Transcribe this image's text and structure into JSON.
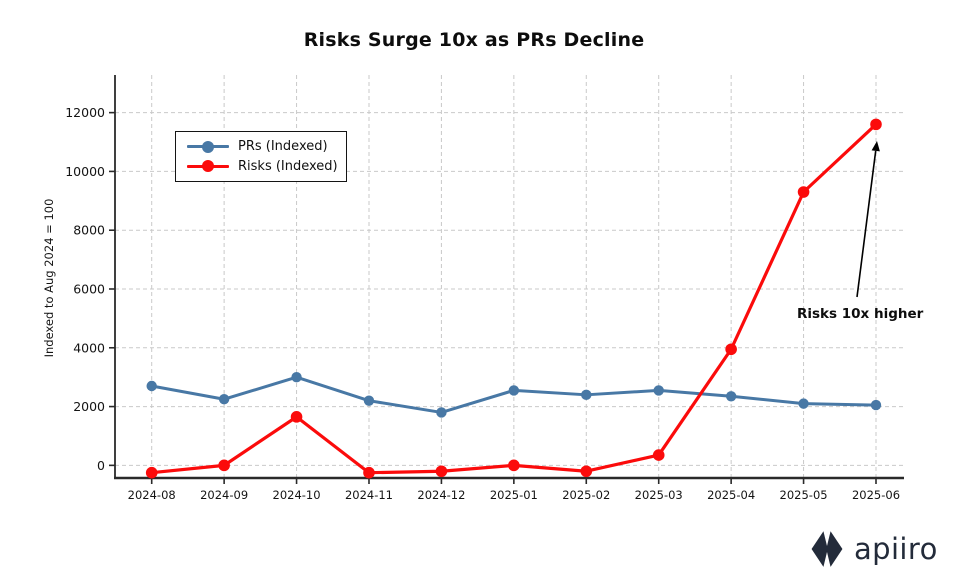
{
  "chart_data": {
    "type": "line",
    "title": "Risks Surge 10x as PRs Decline",
    "xlabel": "",
    "ylabel": "Indexed to Aug 2024 = 100",
    "categories": [
      "2024-08",
      "2024-09",
      "2024-10",
      "2024-11",
      "2024-12",
      "2025-01",
      "2025-02",
      "2025-03",
      "2025-04",
      "2025-05",
      "2025-06"
    ],
    "series": [
      {
        "name": "PRs (Indexed)",
        "color": "#4878A5",
        "values": [
          2700,
          2250,
          3000,
          2200,
          1800,
          2550,
          2400,
          2550,
          2350,
          2100,
          2050
        ]
      },
      {
        "name": "Risks (Indexed)",
        "color": "#FB0B0B",
        "values": [
          -250,
          0,
          1650,
          -250,
          -200,
          0,
          -200,
          350,
          3950,
          9300,
          11600
        ]
      }
    ],
    "yticks": [
      0,
      2000,
      4000,
      6000,
      8000,
      10000,
      12000
    ],
    "ylim": [
      -430,
      13280
    ],
    "grid": "dashed, both axes",
    "legend_position": "upper left",
    "annotation": {
      "text": "Risks 10x higher",
      "points_to": "Risks value at 2025-06"
    }
  },
  "logo": {
    "text": "apiiro",
    "color": "#232B3A"
  },
  "style_colors": {
    "gridline": "#c9c9c9",
    "axis": "#2a2a2a",
    "annotation_arrow": "#000000"
  }
}
